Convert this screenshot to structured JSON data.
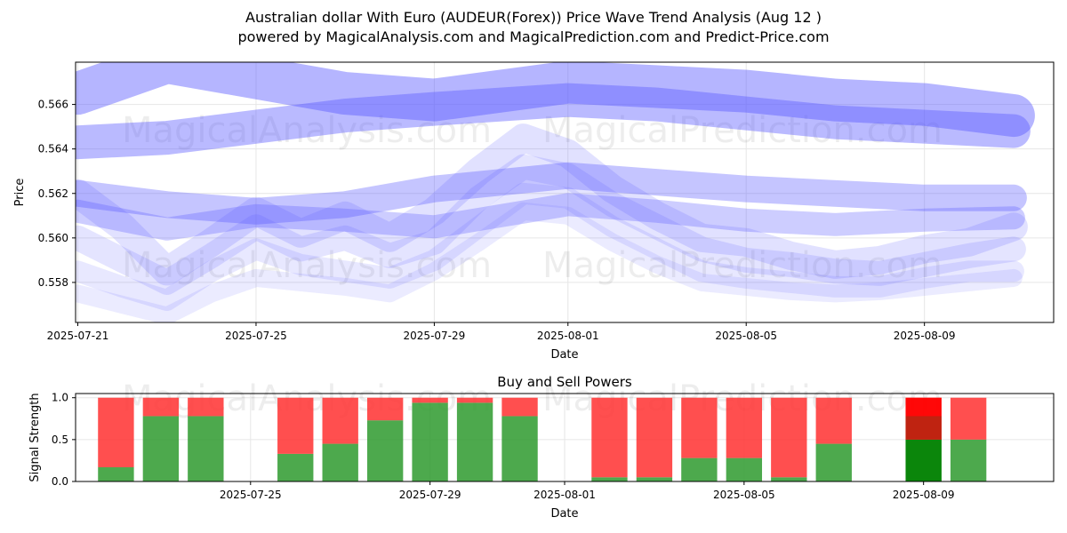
{
  "header": {
    "title_line1": "Australian dollar With Euro (AUDEUR(Forex)) Price Wave Trend Analysis (Aug 12 )",
    "title_line2": "powered by MagicalAnalysis.com and MagicalPrediction.com and Predict-Price.com"
  },
  "watermarks": [
    "MagicalAnalysis.com",
    "MagicalPrediction.com"
  ],
  "colors": {
    "wave": "#5a5aff",
    "buy": "#2e9a2e",
    "sell": "#ff3030",
    "buy_strong": "#008000",
    "sell_strong": "#ff0000"
  },
  "chart_data": [
    {
      "type": "line",
      "xlabel": "Date",
      "ylabel": "Price",
      "x_ticks": [
        "2025-07-21",
        "2025-07-25",
        "2025-07-29",
        "2025-08-01",
        "2025-08-05",
        "2025-08-09"
      ],
      "y_ticks": [
        "0.558",
        "0.560",
        "0.562",
        "0.564",
        "0.566"
      ],
      "xlim": [
        "2025-07-20",
        "2025-08-12"
      ],
      "ylim": [
        0.5562,
        0.5679
      ],
      "series": [
        {
          "dates": [
            "2025-07-21",
            "2025-07-23",
            "2025-07-25",
            "2025-07-27",
            "2025-07-29",
            "2025-08-01",
            "2025-08-03",
            "2025-08-05",
            "2025-08-07",
            "2025-08-09",
            "2025-08-11"
          ],
          "values": [
            0.5665,
            0.5679,
            0.5672,
            0.5665,
            0.5662,
            0.567,
            0.5668,
            0.5666,
            0.5662,
            0.566,
            0.5655
          ]
        },
        {
          "dates": [
            "2025-07-21",
            "2025-07-23",
            "2025-07-25",
            "2025-07-27",
            "2025-07-29",
            "2025-08-01",
            "2025-08-03",
            "2025-08-05",
            "2025-08-07",
            "2025-08-09",
            "2025-08-11"
          ],
          "values": [
            0.5643,
            0.5645,
            0.565,
            0.5655,
            0.5658,
            0.5662,
            0.566,
            0.5656,
            0.5652,
            0.565,
            0.5648
          ]
        },
        {
          "dates": [
            "2025-07-21",
            "2025-07-23",
            "2025-07-25",
            "2025-07-27",
            "2025-07-29",
            "2025-08-01",
            "2025-08-03",
            "2025-08-05",
            "2025-08-07",
            "2025-08-09",
            "2025-08-11"
          ],
          "values": [
            0.562,
            0.5615,
            0.5612,
            0.5615,
            0.5622,
            0.5628,
            0.5625,
            0.5622,
            0.562,
            0.5618,
            0.5618
          ]
        },
        {
          "dates": [
            "2025-07-21",
            "2025-07-23",
            "2025-07-25",
            "2025-07-27",
            "2025-07-29",
            "2025-08-01",
            "2025-08-03",
            "2025-08-05",
            "2025-08-07",
            "2025-08-09",
            "2025-08-11"
          ],
          "values": [
            0.5612,
            0.5604,
            0.561,
            0.5608,
            0.5605,
            0.5615,
            0.5612,
            0.5608,
            0.5606,
            0.5608,
            0.5609
          ]
        },
        {
          "dates": [
            "2025-07-21",
            "2025-07-22",
            "2025-07-23",
            "2025-07-24",
            "2025-07-25",
            "2025-07-26",
            "2025-07-27",
            "2025-07-28",
            "2025-07-29",
            "2025-07-30",
            "2025-07-31",
            "2025-08-01",
            "2025-08-02",
            "2025-08-03",
            "2025-08-04",
            "2025-08-05",
            "2025-08-06",
            "2025-08-07",
            "2025-08-08",
            "2025-08-09",
            "2025-08-10",
            "2025-08-11"
          ],
          "values": [
            0.562,
            0.5605,
            0.5585,
            0.5598,
            0.5612,
            0.5602,
            0.561,
            0.56,
            0.5612,
            0.563,
            0.5645,
            0.5638,
            0.5622,
            0.561,
            0.56,
            0.5598,
            0.5592,
            0.5588,
            0.559,
            0.5595,
            0.5598,
            0.5605
          ]
        },
        {
          "dates": [
            "2025-07-21",
            "2025-07-22",
            "2025-07-23",
            "2025-07-24",
            "2025-07-25",
            "2025-07-26",
            "2025-07-27",
            "2025-07-28",
            "2025-07-29",
            "2025-07-30",
            "2025-07-31",
            "2025-08-01",
            "2025-08-02",
            "2025-08-03",
            "2025-08-04",
            "2025-08-05",
            "2025-08-06",
            "2025-08-07",
            "2025-08-08",
            "2025-08-09",
            "2025-08-10",
            "2025-08-11"
          ],
          "values": [
            0.56,
            0.559,
            0.558,
            0.5592,
            0.5605,
            0.5595,
            0.56,
            0.5592,
            0.5598,
            0.5618,
            0.5632,
            0.5628,
            0.5615,
            0.5605,
            0.5595,
            0.559,
            0.5588,
            0.5585,
            0.5584,
            0.5588,
            0.5592,
            0.5595
          ]
        },
        {
          "dates": [
            "2025-07-21",
            "2025-07-22",
            "2025-07-23",
            "2025-07-24",
            "2025-07-25",
            "2025-07-26",
            "2025-07-27",
            "2025-07-28",
            "2025-07-29",
            "2025-07-30",
            "2025-07-31",
            "2025-08-01",
            "2025-08-02",
            "2025-08-03",
            "2025-08-04",
            "2025-08-05",
            "2025-08-06",
            "2025-08-07",
            "2025-08-08",
            "2025-08-09",
            "2025-08-10",
            "2025-08-11"
          ],
          "values": [
            0.5585,
            0.5578,
            0.5572,
            0.5585,
            0.5595,
            0.5588,
            0.5585,
            0.5582,
            0.559,
            0.5605,
            0.562,
            0.5618,
            0.5605,
            0.5595,
            0.5585,
            0.5582,
            0.558,
            0.5578,
            0.5578,
            0.5582,
            0.5585,
            0.5585
          ]
        },
        {
          "dates": [
            "2025-07-21",
            "2025-07-22",
            "2025-07-23",
            "2025-07-24",
            "2025-07-25",
            "2025-07-26",
            "2025-07-27",
            "2025-07-28",
            "2025-07-29",
            "2025-07-30",
            "2025-07-31",
            "2025-08-01",
            "2025-08-02",
            "2025-08-03",
            "2025-08-04",
            "2025-08-05",
            "2025-08-06",
            "2025-08-07",
            "2025-08-08",
            "2025-08-09",
            "2025-08-10",
            "2025-08-11"
          ],
          "values": [
            0.5575,
            0.557,
            0.5565,
            0.5575,
            0.5582,
            0.558,
            0.5578,
            0.5575,
            0.5585,
            0.5598,
            0.5612,
            0.561,
            0.5598,
            0.5588,
            0.558,
            0.5578,
            0.5576,
            0.5575,
            0.5576,
            0.5578,
            0.558,
            0.5582
          ]
        }
      ]
    },
    {
      "type": "bar",
      "title": "Buy and Sell Powers",
      "xlabel": "Date",
      "ylabel": "Signal Strength",
      "x_ticks": [
        "2025-07-25",
        "2025-07-29",
        "2025-08-01",
        "2025-08-05",
        "2025-08-09"
      ],
      "y_ticks": [
        "0.0",
        "0.5",
        "1.0"
      ],
      "ylim": [
        0,
        1.05
      ],
      "categories": [
        "2025-07-22",
        "2025-07-23",
        "2025-07-24",
        "2025-07-26",
        "2025-07-27",
        "2025-07-28",
        "2025-07-29",
        "2025-07-30",
        "2025-07-31",
        "2025-08-02",
        "2025-08-03",
        "2025-08-04",
        "2025-08-05",
        "2025-08-06",
        "2025-08-07",
        "2025-08-09",
        "2025-08-10"
      ],
      "series": [
        {
          "name": "buy",
          "values": [
            0.17,
            0.78,
            0.78,
            0.33,
            0.45,
            0.73,
            0.94,
            0.94,
            0.78,
            0.05,
            0.05,
            0.28,
            0.28,
            0.05,
            0.45,
            0.5,
            0.5
          ]
        },
        {
          "name": "sell",
          "values": [
            0.83,
            0.22,
            0.22,
            0.67,
            0.55,
            0.27,
            0.06,
            0.06,
            0.22,
            0.95,
            0.95,
            0.72,
            0.72,
            0.95,
            0.55,
            0.5,
            0.5
          ]
        }
      ]
    }
  ]
}
